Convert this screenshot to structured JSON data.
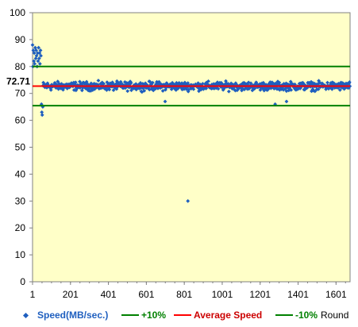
{
  "chart_data": {
    "type": "scatter",
    "title": "",
    "xlabel": "Round",
    "ylabel": "",
    "xlim": [
      1,
      1675
    ],
    "ylim": [
      0,
      100
    ],
    "x_ticks": [
      "1",
      "201",
      "401",
      "601",
      "801",
      "1001",
      "1201",
      "1401",
      "1601"
    ],
    "y_ticks": [
      "0",
      "10",
      "20",
      "30",
      "40",
      "50",
      "60",
      "70",
      "80",
      "90",
      "100"
    ],
    "plot_background": "#ffffc8",
    "grid": false,
    "legend_position": "bottom",
    "series": [
      {
        "name": "Speed(MB/sec.)",
        "type": "scatter",
        "color": "#1f5fbf",
        "description_points": [
          {
            "x": 1,
            "y": 88
          },
          {
            "x": 3,
            "y": 80
          },
          {
            "x": 5,
            "y": 86
          },
          {
            "x": 8,
            "y": 82
          },
          {
            "x": 10,
            "y": 85
          },
          {
            "x": 12,
            "y": 81
          },
          {
            "x": 15,
            "y": 87
          },
          {
            "x": 18,
            "y": 83
          },
          {
            "x": 20,
            "y": 86
          },
          {
            "x": 22,
            "y": 84
          },
          {
            "x": 25,
            "y": 80
          },
          {
            "x": 28,
            "y": 85
          },
          {
            "x": 30,
            "y": 82
          },
          {
            "x": 33,
            "y": 87
          },
          {
            "x": 36,
            "y": 83
          },
          {
            "x": 38,
            "y": 85
          },
          {
            "x": 40,
            "y": 81
          },
          {
            "x": 43,
            "y": 86
          },
          {
            "x": 45,
            "y": 84
          },
          {
            "x": 48,
            "y": 66
          },
          {
            "x": 50,
            "y": 63
          },
          {
            "x": 52,
            "y": 62
          },
          {
            "x": 55,
            "y": 65
          },
          {
            "x": 820,
            "y": 30
          },
          {
            "x": 1280,
            "y": 66
          },
          {
            "x": 1340,
            "y": 67
          },
          {
            "x": 700,
            "y": 67
          }
        ],
        "bulk_range": {
          "x_from": 56,
          "x_to": 1675,
          "y_min": 67,
          "y_max": 75,
          "y_center": 72.71
        }
      },
      {
        "name": "+10%",
        "type": "hline",
        "y": 80,
        "color": "#008000"
      },
      {
        "name": "Average Speed",
        "type": "hline",
        "y": 72.71,
        "color": "#ff0000"
      },
      {
        "name": "-10%",
        "type": "hline",
        "y": 65.44,
        "color": "#008000"
      }
    ],
    "annotations": [
      {
        "text": "72.71",
        "y": 72.71,
        "color": "#cc0000"
      }
    ]
  },
  "legend": {
    "items": [
      {
        "label": "Speed(MB/sec.)",
        "color": "#1f5fbf"
      },
      {
        "label": "+10%",
        "color": "#008000"
      },
      {
        "label": "Average Speed",
        "color": "#ff0000"
      },
      {
        "label": "-10%",
        "color": "#008000"
      }
    ],
    "xlabel": "Round"
  }
}
